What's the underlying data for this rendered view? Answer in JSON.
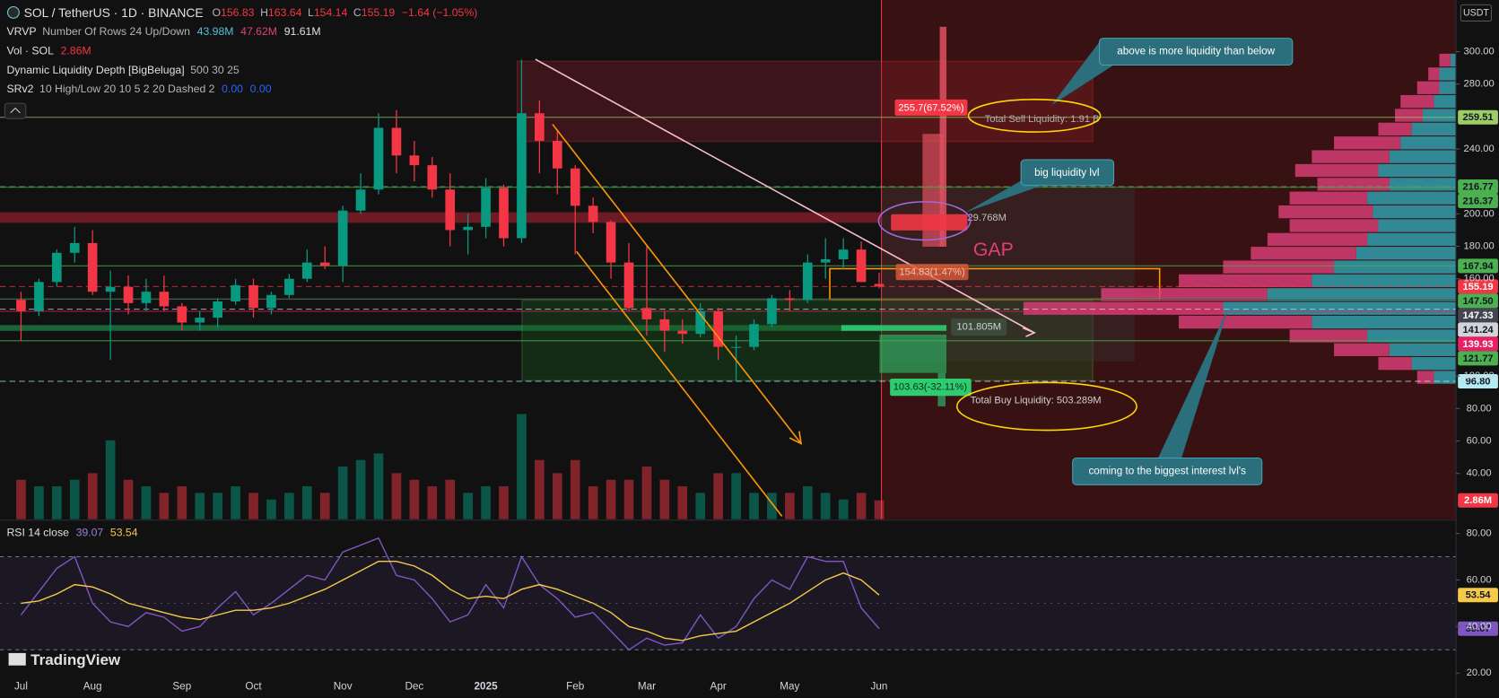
{
  "header": {
    "symbol": "SOL / TetherUS · 1D · BINANCE",
    "ohlc_letters": [
      "O",
      "H",
      "L",
      "C"
    ],
    "change": "−1.64 (−1.05%)",
    "vrvp": {
      "name": "VRVP",
      "params": "Number Of Rows 24 Up/Down",
      "values": [
        "43.98M",
        "47.62M",
        "91.61M"
      ]
    },
    "vol": {
      "name": "Vol · SOL"
    },
    "dld": {
      "name": "Dynamic Liquidity Depth [BigBeluga]",
      "params": "500 30 25"
    },
    "srv2": {
      "name": "SRv2",
      "params": "10 High/Low 20 10 5 2 20 Dashed 2",
      "values": [
        "0.00",
        "0.00"
      ]
    },
    "currency": "USDT",
    "brand": "TradingView"
  },
  "annotations": {
    "above": "above is more liquidity than below",
    "big": "big liquidity lvl",
    "gap": "GAP",
    "coming": "coming to the biggest interest lvl's",
    "sell_total": "Total Sell Liquidity: 1.91 B",
    "buy_total": "Total Buy Liquidity: 503.289M",
    "sell_pct": "255.7(67.52%)",
    "near_pct": "154.83(1.47%)",
    "mid_vol": "29.768M",
    "buy_vol": "101.805M",
    "buy_pct": "103.63(-32.11%)"
  },
  "chart_data": [
    {
      "type": "candlestick",
      "categories": [
        "Jul",
        null,
        null,
        null,
        "Aug",
        null,
        null,
        null,
        null,
        "Sep",
        null,
        null,
        null,
        "Oct",
        null,
        null,
        null,
        null,
        "Nov",
        null,
        null,
        null,
        "Dec",
        null,
        null,
        null,
        "2025",
        null,
        null,
        null,
        null,
        "Feb",
        null,
        null,
        null,
        "Mar",
        null,
        null,
        null,
        "Apr",
        null,
        null,
        null,
        "May",
        null,
        null,
        null,
        null,
        "Jun"
      ],
      "open": [
        147,
        140,
        158,
        176,
        182,
        152,
        155,
        145,
        152,
        143,
        133,
        136,
        146,
        156,
        142,
        150,
        160,
        170,
        168,
        202,
        215,
        253,
        236,
        230,
        215,
        190,
        192,
        216,
        185,
        262,
        245,
        228,
        205,
        195,
        170,
        142,
        135,
        128,
        126,
        140,
        118,
        118,
        132,
        148,
        147,
        170,
        172,
        178,
        156.83
      ],
      "high": [
        152,
        160,
        178,
        192,
        190,
        165,
        162,
        160,
        162,
        145,
        140,
        148,
        160,
        160,
        152,
        163,
        178,
        180,
        205,
        225,
        262,
        264,
        245,
        235,
        225,
        200,
        222,
        218,
        295,
        270,
        252,
        230,
        210,
        196,
        182,
        180,
        140,
        135,
        145,
        142,
        125,
        135,
        150,
        153,
        175,
        185,
        185,
        183,
        163.64
      ],
      "low": [
        122,
        137,
        155,
        170,
        150,
        110,
        138,
        140,
        140,
        128,
        128,
        130,
        144,
        136,
        138,
        148,
        158,
        166,
        158,
        200,
        212,
        225,
        220,
        210,
        180,
        175,
        185,
        180,
        182,
        225,
        212,
        175,
        188,
        160,
        140,
        125,
        115,
        120,
        124,
        110,
        97,
        116,
        130,
        140,
        145,
        160,
        166,
        158,
        154.14
      ],
      "close": [
        140,
        158,
        176,
        182,
        152,
        155,
        145,
        152,
        143,
        133,
        136,
        146,
        156,
        142,
        150,
        160,
        170,
        168,
        202,
        215,
        253,
        236,
        230,
        215,
        190,
        192,
        216,
        185,
        262,
        245,
        228,
        205,
        195,
        170,
        142,
        135,
        128,
        126,
        140,
        118,
        118,
        132,
        148,
        147,
        170,
        172,
        178,
        158,
        155.19
      ],
      "up_color": "#089981",
      "down_color": "#f23645",
      "ylim": [
        11.8,
        331.8
      ],
      "yticks": [
        {
          "value": 40,
          "label": "40.00"
        },
        {
          "value": 60,
          "label": "60.00"
        },
        {
          "value": 80,
          "label": "80.00"
        },
        {
          "value": 100,
          "label": "100.00"
        },
        {
          "value": 160,
          "label": "160.00"
        },
        {
          "value": 180,
          "label": "180.00"
        },
        {
          "value": 200,
          "label": "200.00"
        },
        {
          "value": 240,
          "label": "240.00"
        },
        {
          "value": 280,
          "label": "280.00"
        },
        {
          "value": 300,
          "label": "300.00"
        }
      ],
      "volume": {
        "values": [
          6,
          5,
          5,
          6,
          7,
          12,
          6,
          5,
          4,
          5,
          4,
          4,
          5,
          4,
          3,
          4,
          5,
          4,
          8,
          9,
          10,
          7,
          6,
          5,
          6,
          4,
          5,
          5,
          16,
          9,
          7,
          9,
          5,
          6,
          6,
          8,
          6,
          5,
          4,
          7,
          7,
          4,
          4,
          4,
          5,
          4,
          3,
          4,
          2.86
        ],
        "last_label": "2.86M"
      },
      "levels": [
        {
          "value": 259.51,
          "color": "#9ccc65",
          "text_color": "#131722"
        },
        {
          "value": 216.77,
          "color": "#4caf50",
          "text_color": "#131722"
        },
        {
          "value": 216.37,
          "color": "#4caf50",
          "text_color": "#131722"
        },
        {
          "value": 167.94,
          "color": "#4caf50",
          "text_color": "#131722"
        },
        {
          "value": 155.19,
          "color": "#f23645",
          "text_color": "#ffffff"
        },
        {
          "value": 147.5,
          "label": "147.50",
          "color": "#4caf50",
          "text_color": "#131722"
        },
        {
          "value": 147.33,
          "color": "#434651",
          "text_color": "#ffffff"
        },
        {
          "value": 141.24,
          "color": "#d1d4dc",
          "text_color": "#131722"
        },
        {
          "value": 139.93,
          "color": "#e91e63",
          "text_color": "#ffffff"
        },
        {
          "value": 121.77,
          "color": "#4caf50",
          "text_color": "#131722"
        },
        {
          "value": 96.8,
          "label": "96.80",
          "color": "#b2ebf2",
          "text_color": "#131722"
        }
      ],
      "volume_profile": {
        "bins": [
          95,
          103.5,
          112,
          120.5,
          129,
          137.5,
          146,
          154.5,
          163,
          171.5,
          180,
          188.5,
          197,
          205.5,
          214,
          222.5,
          231,
          239.5,
          248,
          256.5,
          265,
          273.5,
          282,
          290.5,
          299
        ],
        "up": [
          0.4,
          0.8,
          1.2,
          1.6,
          2.6,
          4.2,
          3.4,
          2.6,
          2.2,
          1.8,
          1.6,
          1.4,
          1.5,
          1.6,
          1.2,
          1.4,
          1.2,
          1.0,
          0.8,
          0.6,
          0.4,
          0.3,
          0.3,
          0.1
        ],
        "down": [
          0.3,
          0.6,
          1.0,
          1.4,
          2.4,
          3.6,
          3.0,
          2.4,
          2.0,
          1.9,
          1.8,
          1.6,
          1.7,
          1.4,
          1.3,
          1.5,
          1.4,
          1.2,
          0.6,
          0.5,
          0.6,
          0.4,
          0.2,
          0.2
        ],
        "up_color": "#2fa7b8",
        "down_color": "#e0407a"
      }
    },
    {
      "type": "line",
      "title": "RSI 14 close",
      "series": [
        {
          "color": "#7e57c2",
          "values": [
            45,
            55,
            65,
            70,
            50,
            42,
            40,
            46,
            44,
            38,
            40,
            48,
            55,
            45,
            50,
            56,
            62,
            60,
            72,
            75,
            78,
            62,
            60,
            52,
            42,
            45,
            58,
            48,
            70,
            58,
            52,
            44,
            46,
            38,
            30,
            35,
            32,
            33,
            45,
            35,
            40,
            52,
            60,
            56,
            70,
            68,
            68,
            48,
            39.07
          ]
        },
        {
          "color": "#f7c948",
          "values": [
            50,
            51,
            54,
            58,
            57,
            54,
            50,
            48,
            46,
            44,
            43,
            45,
            47,
            47,
            48,
            50,
            53,
            56,
            60,
            64,
            68,
            68,
            66,
            62,
            56,
            52,
            53,
            52,
            56,
            58,
            56,
            53,
            50,
            46,
            40,
            38,
            35,
            34,
            36,
            37,
            38,
            42,
            46,
            50,
            55,
            60,
            63,
            60,
            53.54
          ]
        }
      ],
      "ylim": [
        9.3,
        85.3
      ],
      "yticks": [
        {
          "value": 20,
          "label": "20.00"
        },
        {
          "value": 40,
          "label": "40.00"
        },
        {
          "value": 60,
          "label": "60.00"
        },
        {
          "value": 80,
          "label": "80.00"
        }
      ],
      "bands": [
        30,
        70
      ],
      "midline": 50
    }
  ]
}
